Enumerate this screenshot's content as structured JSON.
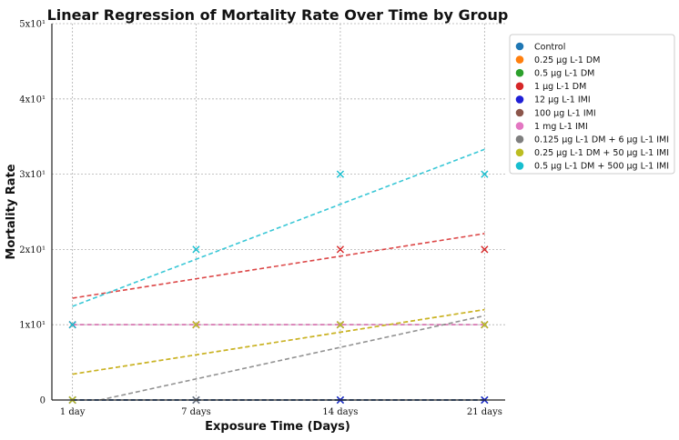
{
  "chart_data": {
    "type": "scatter",
    "title": "Linear Regression of Mortality Rate Over Time by Group",
    "xlabel": "Exposure Time (Days)",
    "ylabel": "Mortality Rate",
    "categories": [
      "1 day",
      "7 days",
      "14 days",
      "21 days"
    ],
    "x_positions": [
      1,
      7,
      14,
      21
    ],
    "xlim": [
      0,
      22
    ],
    "ylim": [
      0,
      50
    ],
    "yticks": [
      {
        "value": 0,
        "label": "0"
      },
      {
        "value": 10,
        "label": "1x10¹"
      },
      {
        "value": 20,
        "label": "2x10¹"
      },
      {
        "value": 30,
        "label": "3x10¹"
      },
      {
        "value": 40,
        "label": "4x10¹"
      },
      {
        "value": 50,
        "label": "5x10¹"
      }
    ],
    "grid": true,
    "legend_position": "right",
    "series": [
      {
        "name": "Control",
        "color": "#1f77b4",
        "values": [
          0,
          0,
          0,
          0
        ],
        "fit": [
          0,
          0
        ]
      },
      {
        "name": "0.25 μg L-1 DM",
        "color": "#ff7f0e",
        "values": [
          0,
          10,
          10,
          10
        ],
        "fit": [
          3,
          0.429
        ]
      },
      {
        "name": "0.5 μg L-1 DM",
        "color": "#2ca02c",
        "values": [
          0,
          0,
          0,
          0
        ],
        "fit": [
          0,
          0
        ]
      },
      {
        "name": "1 μg L-1 DM",
        "color": "#d62728",
        "values": [
          10,
          10,
          20,
          20
        ],
        "fit": [
          13.1,
          0.429
        ]
      },
      {
        "name": "12 μg L-1 IMI",
        "color": "#1f1fd6",
        "values": [
          0,
          0,
          0,
          0
        ],
        "fit": [
          0,
          0
        ]
      },
      {
        "name": "100 μg L-1 IMI",
        "color": "#8c564b",
        "values": [
          10,
          10,
          10,
          10
        ],
        "fit": [
          10,
          0
        ]
      },
      {
        "name": "1 mg L-1 IMI",
        "color": "#e377c2",
        "values": [
          10,
          10,
          10,
          10
        ],
        "fit": [
          10,
          0
        ]
      },
      {
        "name": "0.125 μg L-1 DM + 6 μg L-1 IMI",
        "color": "#7f7f7f",
        "values": [
          0,
          0,
          10,
          10
        ],
        "fit": [
          -1.4,
          0.6
        ]
      },
      {
        "name": "0.25 μg L-1 DM + 50 μg L-1 IMI",
        "color": "#bcbd22",
        "values": [
          0,
          10,
          10,
          10
        ],
        "fit": [
          3,
          0.429
        ]
      },
      {
        "name": "0.5 μg L-1 DM + 500 μg L-1 IMI",
        "color": "#17becf",
        "values": [
          10,
          20,
          30,
          30
        ],
        "fit": [
          11.4,
          1.043
        ]
      }
    ]
  }
}
